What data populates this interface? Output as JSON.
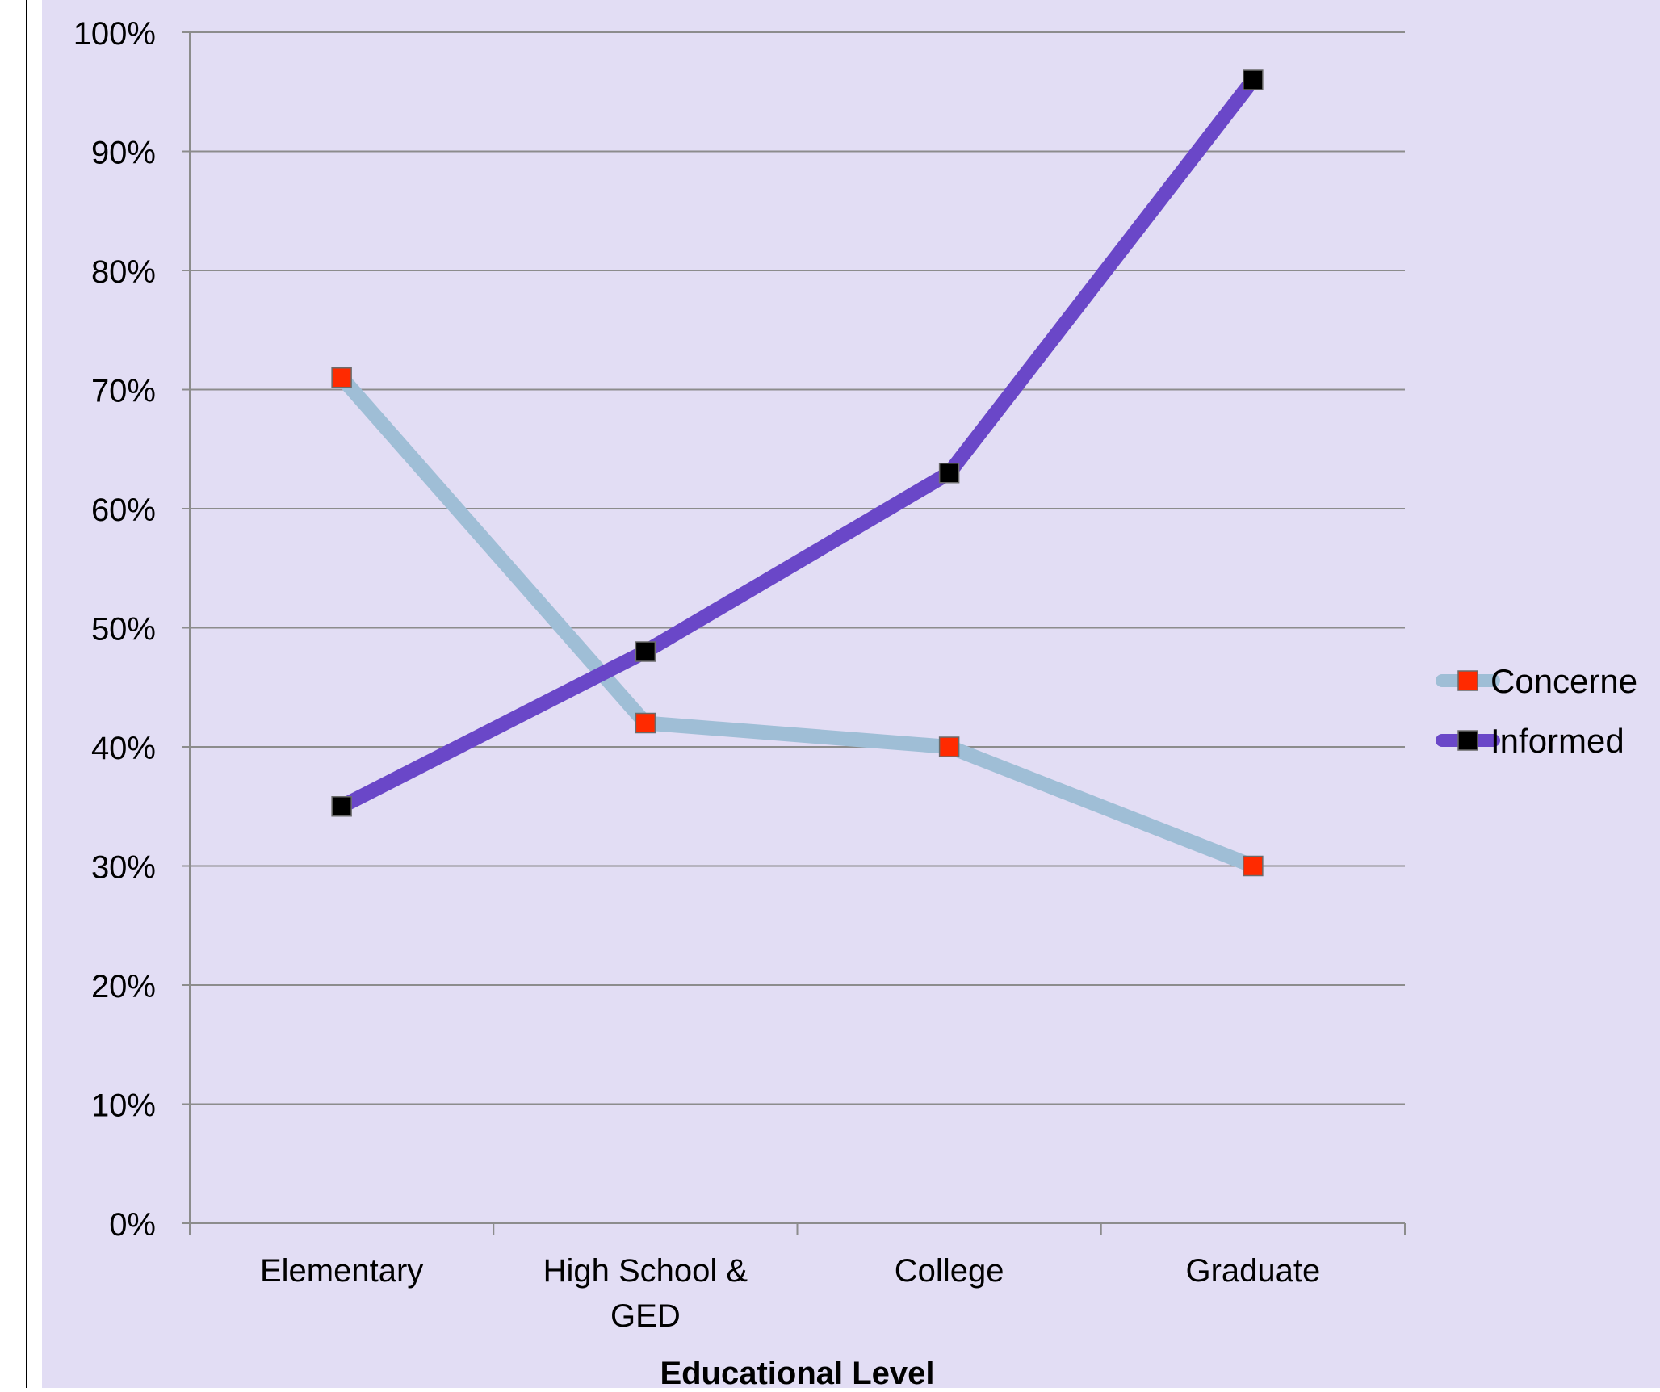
{
  "colors": {
    "plot_background": "#e2ddf4",
    "gridline": "#8c8c8c",
    "frame_line": "#000000",
    "concerned_line": "#9fbed6",
    "informed_line": "#6a47c8",
    "concerned_marker": "#ff2a00",
    "informed_marker": "#000000"
  },
  "chart_data": {
    "type": "line",
    "categories": [
      "Elementary",
      "High School & GED",
      "College",
      "Graduate"
    ],
    "category_tick_lines": [
      [
        "Elementary"
      ],
      [
        "High School &",
        "GED"
      ],
      [
        "College"
      ],
      [
        "Graduate"
      ]
    ],
    "series": [
      {
        "name": "Concerned",
        "values": [
          71,
          42,
          40,
          30
        ]
      },
      {
        "name": "Informed",
        "values": [
          35,
          48,
          63,
          96
        ]
      }
    ],
    "y_ticks": [
      "0%",
      "10%",
      "20%",
      "30%",
      "40%",
      "50%",
      "60%",
      "70%",
      "80%",
      "90%",
      "100%"
    ],
    "ylim": [
      0,
      100
    ],
    "y_unit": "%",
    "xlabel": "Educational Level",
    "ylabel": "",
    "title": "",
    "grid": true,
    "legend": {
      "placement": "right",
      "entries": [
        "Concerne",
        "Informed"
      ]
    }
  }
}
